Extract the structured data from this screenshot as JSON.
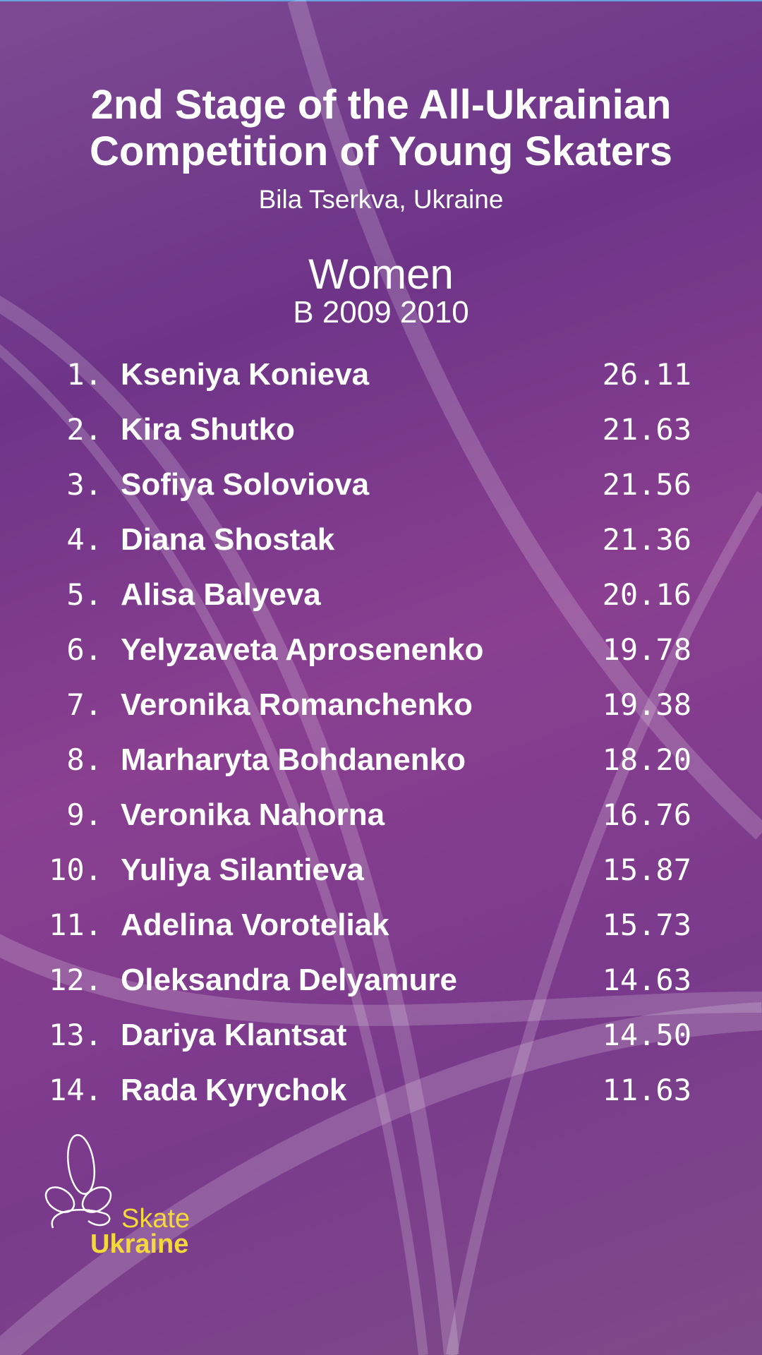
{
  "header": {
    "title_line1": "2nd Stage of the All-Ukrainian",
    "title_line2": "Competition of Young Skaters",
    "location": "Bila Tserkva, Ukraine"
  },
  "category": {
    "name": "Women",
    "group": "B 2009 2010"
  },
  "results": [
    {
      "rank": "1.",
      "name": "Kseniya Konieva",
      "score": "26.11"
    },
    {
      "rank": "2.",
      "name": "Kira Shutko",
      "score": "21.63"
    },
    {
      "rank": "3.",
      "name": "Sofiya Soloviova",
      "score": "21.56"
    },
    {
      "rank": "4.",
      "name": "Diana Shostak",
      "score": "21.36"
    },
    {
      "rank": "5.",
      "name": "Alisa Balyeva",
      "score": "20.16"
    },
    {
      "rank": "6.",
      "name": "Yelyzaveta Aprosenenko",
      "score": "19.78"
    },
    {
      "rank": "7.",
      "name": "Veronika Romanchenko",
      "score": "19.38"
    },
    {
      "rank": "8.",
      "name": "Marharyta Bohdanenko",
      "score": "18.20"
    },
    {
      "rank": "9.",
      "name": "Veronika Nahorna",
      "score": "16.76"
    },
    {
      "rank": "10.",
      "name": "Yuliya Silantieva",
      "score": "15.87"
    },
    {
      "rank": "11.",
      "name": "Adelina Voroteliak",
      "score": "15.73"
    },
    {
      "rank": "12.",
      "name": "Oleksandra Delyamure",
      "score": "14.63"
    },
    {
      "rank": "13.",
      "name": "Dariya Klantsat",
      "score": "14.50"
    },
    {
      "rank": "14.",
      "name": "Rada Kyrychok",
      "score": "11.63"
    }
  ],
  "logo": {
    "line1": "Skate",
    "line2": "Ukraine",
    "color": "#f5d83a"
  },
  "colors": {
    "background": "#7a3a8c",
    "text": "#ffffff"
  }
}
